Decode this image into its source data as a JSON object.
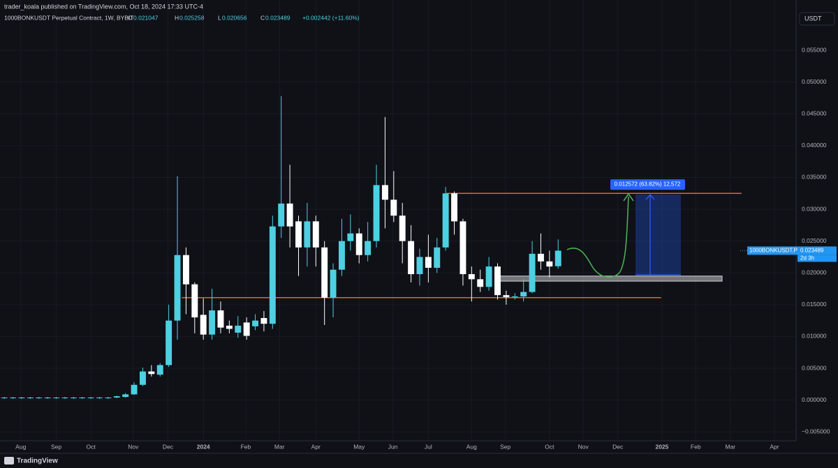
{
  "header": {
    "publisher": "trader_koala published on TradingView.com, Oct 18, 2024 17:33 UTC-4",
    "symbol": "1000BONKUSDT Perpetual Contract, 1W, BYBIT",
    "ohlc": [
      {
        "key": "O",
        "value": "0.021047"
      },
      {
        "key": "H",
        "value": "0.025258"
      },
      {
        "key": "L",
        "value": "0.020656"
      },
      {
        "key": "C",
        "value": "0.023489"
      }
    ],
    "change": "+0.002442 (+11.60%)",
    "currency": "USDT"
  },
  "footer": {
    "brand": "TradingView"
  },
  "chart_data": {
    "type": "candlestick",
    "up_color": "#4dd0e1",
    "down_color": "#ffffff",
    "open": [
      0.0003,
      0.0003,
      0.0003,
      0.0003,
      0.0003,
      0.0003,
      0.0003,
      0.0003,
      0.0003,
      0.0003,
      0.0003,
      0.0003,
      0.0003,
      0.0004,
      0.0005,
      0.0009,
      0.0024,
      0.0045,
      0.004,
      0.0055,
      0.0125,
      0.0228,
      0.0182,
      0.0134,
      0.0103,
      0.0141,
      0.0117,
      0.0106,
      0.0122,
      0.0116,
      0.0129,
      0.012,
      0.0273,
      0.0309,
      0.0281,
      0.024,
      0.0281,
      0.024,
      0.0161,
      0.0205,
      0.025,
      0.0262,
      0.0228,
      0.025,
      0.0338,
      0.0315,
      0.029,
      0.025,
      0.0198,
      0.0225,
      0.0208,
      0.024,
      0.0325,
      0.0281,
      0.0198,
      0.019,
      0.0178,
      0.021,
      0.0165,
      0.0162,
      0.0163,
      0.017,
      0.023,
      0.0218,
      0.021047
    ],
    "high": [
      0.0005,
      0.0005,
      0.0005,
      0.0005,
      0.0005,
      0.0005,
      0.0005,
      0.0005,
      0.0005,
      0.0005,
      0.0005,
      0.0005,
      0.0005,
      0.0007,
      0.0011,
      0.0028,
      0.0051,
      0.0055,
      0.0058,
      0.015,
      0.0352,
      0.024,
      0.0185,
      0.016,
      0.0175,
      0.0155,
      0.0125,
      0.0132,
      0.013,
      0.0135,
      0.014,
      0.029,
      0.0478,
      0.037,
      0.029,
      0.031,
      0.029,
      0.025,
      0.0215,
      0.0285,
      0.0292,
      0.027,
      0.028,
      0.037,
      0.0445,
      0.036,
      0.031,
      0.0275,
      0.0238,
      0.026,
      0.0255,
      0.0335,
      0.0328,
      0.0285,
      0.021,
      0.0205,
      0.0225,
      0.0215,
      0.0172,
      0.0168,
      0.019,
      0.025,
      0.0262,
      0.0235,
      0.025258
    ],
    "low": [
      0.0002,
      0.0002,
      0.0002,
      0.0002,
      0.0002,
      0.0002,
      0.0002,
      0.0002,
      0.0002,
      0.0002,
      0.0002,
      0.0002,
      0.0002,
      0.0003,
      0.0004,
      0.0008,
      0.0022,
      0.0037,
      0.0037,
      0.0052,
      0.0095,
      0.0135,
      0.0105,
      0.0095,
      0.0095,
      0.0105,
      0.0105,
      0.0098,
      0.0095,
      0.011,
      0.0108,
      0.0112,
      0.0255,
      0.024,
      0.0195,
      0.021,
      0.021,
      0.0118,
      0.013,
      0.0195,
      0.0235,
      0.0215,
      0.0218,
      0.024,
      0.027,
      0.028,
      0.0215,
      0.0185,
      0.018,
      0.0185,
      0.02,
      0.0235,
      0.026,
      0.018,
      0.0155,
      0.017,
      0.0172,
      0.0158,
      0.015,
      0.0158,
      0.0155,
      0.0168,
      0.0205,
      0.0193,
      0.020656
    ],
    "close": [
      0.0004,
      0.0004,
      0.0004,
      0.0004,
      0.0004,
      0.0004,
      0.0004,
      0.0004,
      0.0004,
      0.0004,
      0.0004,
      0.0004,
      0.0004,
      0.0006,
      0.0009,
      0.0024,
      0.0045,
      0.0041,
      0.0055,
      0.0125,
      0.0228,
      0.0182,
      0.013,
      0.0103,
      0.0141,
      0.0114,
      0.0112,
      0.0117,
      0.0101,
      0.0125,
      0.012,
      0.0273,
      0.0309,
      0.0273,
      0.024,
      0.0281,
      0.024,
      0.0161,
      0.0205,
      0.025,
      0.0262,
      0.0228,
      0.025,
      0.0338,
      0.0315,
      0.029,
      0.025,
      0.0198,
      0.0225,
      0.0208,
      0.024,
      0.0325,
      0.0281,
      0.0198,
      0.019,
      0.0178,
      0.021,
      0.0165,
      0.0162,
      0.0163,
      0.017,
      0.023,
      0.0218,
      0.021,
      0.023489
    ],
    "xlim": [
      -0.5,
      91.5
    ],
    "xticks": [
      {
        "value": 1.9,
        "label": "Aug"
      },
      {
        "value": 6,
        "label": "Sep"
      },
      {
        "value": 10,
        "label": "Oct"
      },
      {
        "value": 14.9,
        "label": "Nov"
      },
      {
        "value": 18.9,
        "label": "Dec"
      },
      {
        "value": 23,
        "label": "2024"
      },
      {
        "value": 27.9,
        "label": "Feb"
      },
      {
        "value": 31.8,
        "label": "Mar"
      },
      {
        "value": 36,
        "label": "Apr"
      },
      {
        "value": 41,
        "label": "May"
      },
      {
        "value": 44.9,
        "label": "Jun"
      },
      {
        "value": 49,
        "label": "Jul"
      },
      {
        "value": 54,
        "label": "Aug"
      },
      {
        "value": 57.9,
        "label": "Sep"
      },
      {
        "value": 63,
        "label": "Oct"
      },
      {
        "value": 66.9,
        "label": "Nov"
      },
      {
        "value": 70.9,
        "label": "Dec"
      },
      {
        "value": 76,
        "label": "2025"
      },
      {
        "value": 79.9,
        "label": "Feb"
      },
      {
        "value": 83.9,
        "label": "Mar"
      },
      {
        "value": 89,
        "label": "Apr"
      }
    ],
    "ylim": [
      -0.0064,
      0.0629
    ],
    "yticks": [
      {
        "value": -0.005,
        "label": "−0.005000"
      },
      {
        "value": 0,
        "label": "0.000000"
      },
      {
        "value": 0.005,
        "label": "0.005000"
      },
      {
        "value": 0.01,
        "label": "0.010000"
      },
      {
        "value": 0.015,
        "label": "0.015000"
      },
      {
        "value": 0.02,
        "label": "0.020000"
      },
      {
        "value": 0.025,
        "label": "0.025000"
      },
      {
        "value": 0.03,
        "label": "0.030000"
      },
      {
        "value": 0.035,
        "label": "0.035000"
      },
      {
        "value": 0.04,
        "label": "0.040000"
      },
      {
        "value": 0.045,
        "label": "0.045000"
      },
      {
        "value": 0.05,
        "label": "0.050000"
      },
      {
        "value": 0.055,
        "label": "0.055000"
      }
    ],
    "grid": true,
    "levels": [
      0.0325,
      0.0161
    ],
    "level_color": "#f0602a",
    "zone": [
      0.0187,
      0.0195
    ],
    "measure": {
      "range": [
        0.0197,
        0.0323
      ],
      "label": "0.012572 (63.82%) 12,572"
    },
    "last_price": {
      "symbol": "1000BONKUSDT.P",
      "price": "0.023489",
      "countdown": "2d 3h"
    }
  }
}
